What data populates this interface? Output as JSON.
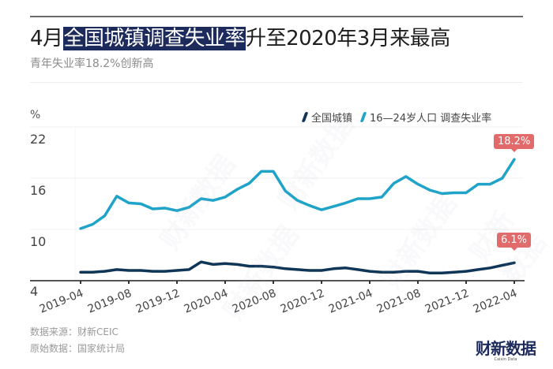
{
  "header": {
    "title_prefix": "4月",
    "title_highlight": "全国城镇调查失业率",
    "title_suffix": "升至2020年3月来最高",
    "subtitle": "青年失业率18.2%创新高"
  },
  "footer": {
    "source_line": "数据来源：财新CEIC",
    "origin_line": "原始数据：国家统计局",
    "logo_cn": "财新数据",
    "logo_en": "Caixin Data"
  },
  "watermark": "财新数据",
  "callouts": {
    "youth_latest": "18.2%",
    "urban_latest": "6.1%"
  },
  "colors": {
    "urban": "#0f3557",
    "youth": "#1fa3c9",
    "callout": "#e26a6a",
    "highlight": "#1c2a5c"
  },
  "chart_data": {
    "type": "line",
    "title": "4月全国城镇调查失业率升至2020年3月来最高",
    "subtitle": "青年失业率18.2%创新高",
    "xlabel": "",
    "ylabel": "%",
    "ylim": [
      4,
      22
    ],
    "yticks": [
      4,
      10,
      16,
      22
    ],
    "grid": true,
    "legend_position": "top-right",
    "x_tick_labels": [
      "2019-04",
      "2019-08",
      "2019-12",
      "2020-04",
      "2020-08",
      "2020-12",
      "2021-04",
      "2021-08",
      "2021-12",
      "2022-04"
    ],
    "x": [
      "2019-04",
      "2019-05",
      "2019-06",
      "2019-07",
      "2019-08",
      "2019-09",
      "2019-10",
      "2019-11",
      "2019-12",
      "2020-01",
      "2020-02",
      "2020-03",
      "2020-04",
      "2020-05",
      "2020-06",
      "2020-07",
      "2020-08",
      "2020-09",
      "2020-10",
      "2020-11",
      "2020-12",
      "2021-01",
      "2021-02",
      "2021-03",
      "2021-04",
      "2021-05",
      "2021-06",
      "2021-07",
      "2021-08",
      "2021-09",
      "2021-10",
      "2021-11",
      "2021-12",
      "2022-01",
      "2022-02",
      "2022-03",
      "2022-04"
    ],
    "series": [
      {
        "name": "全国城镇",
        "values": [
          5.0,
          5.0,
          5.1,
          5.3,
          5.2,
          5.2,
          5.1,
          5.1,
          5.2,
          5.3,
          6.2,
          5.9,
          6.0,
          5.9,
          5.7,
          5.7,
          5.6,
          5.4,
          5.3,
          5.2,
          5.2,
          5.4,
          5.5,
          5.3,
          5.1,
          5.0,
          5.0,
          5.1,
          5.1,
          4.9,
          4.9,
          5.0,
          5.1,
          5.3,
          5.5,
          5.8,
          6.1
        ]
      },
      {
        "name": "16—24岁人口 调查失业率",
        "values": [
          10.1,
          10.6,
          11.6,
          13.9,
          13.1,
          13.0,
          12.4,
          12.5,
          12.2,
          12.6,
          13.6,
          13.4,
          13.8,
          14.7,
          15.4,
          16.8,
          16.8,
          14.5,
          13.4,
          12.8,
          12.3,
          12.7,
          13.1,
          13.6,
          13.6,
          13.8,
          15.4,
          16.2,
          15.3,
          14.6,
          14.2,
          14.3,
          14.3,
          15.3,
          15.3,
          16.0,
          18.2
        ]
      }
    ],
    "annotations": [
      {
        "series": "16—24岁人口 调查失业率",
        "x": "2022-04",
        "label": "18.2%"
      },
      {
        "series": "全国城镇",
        "x": "2022-04",
        "label": "6.1%"
      }
    ]
  }
}
